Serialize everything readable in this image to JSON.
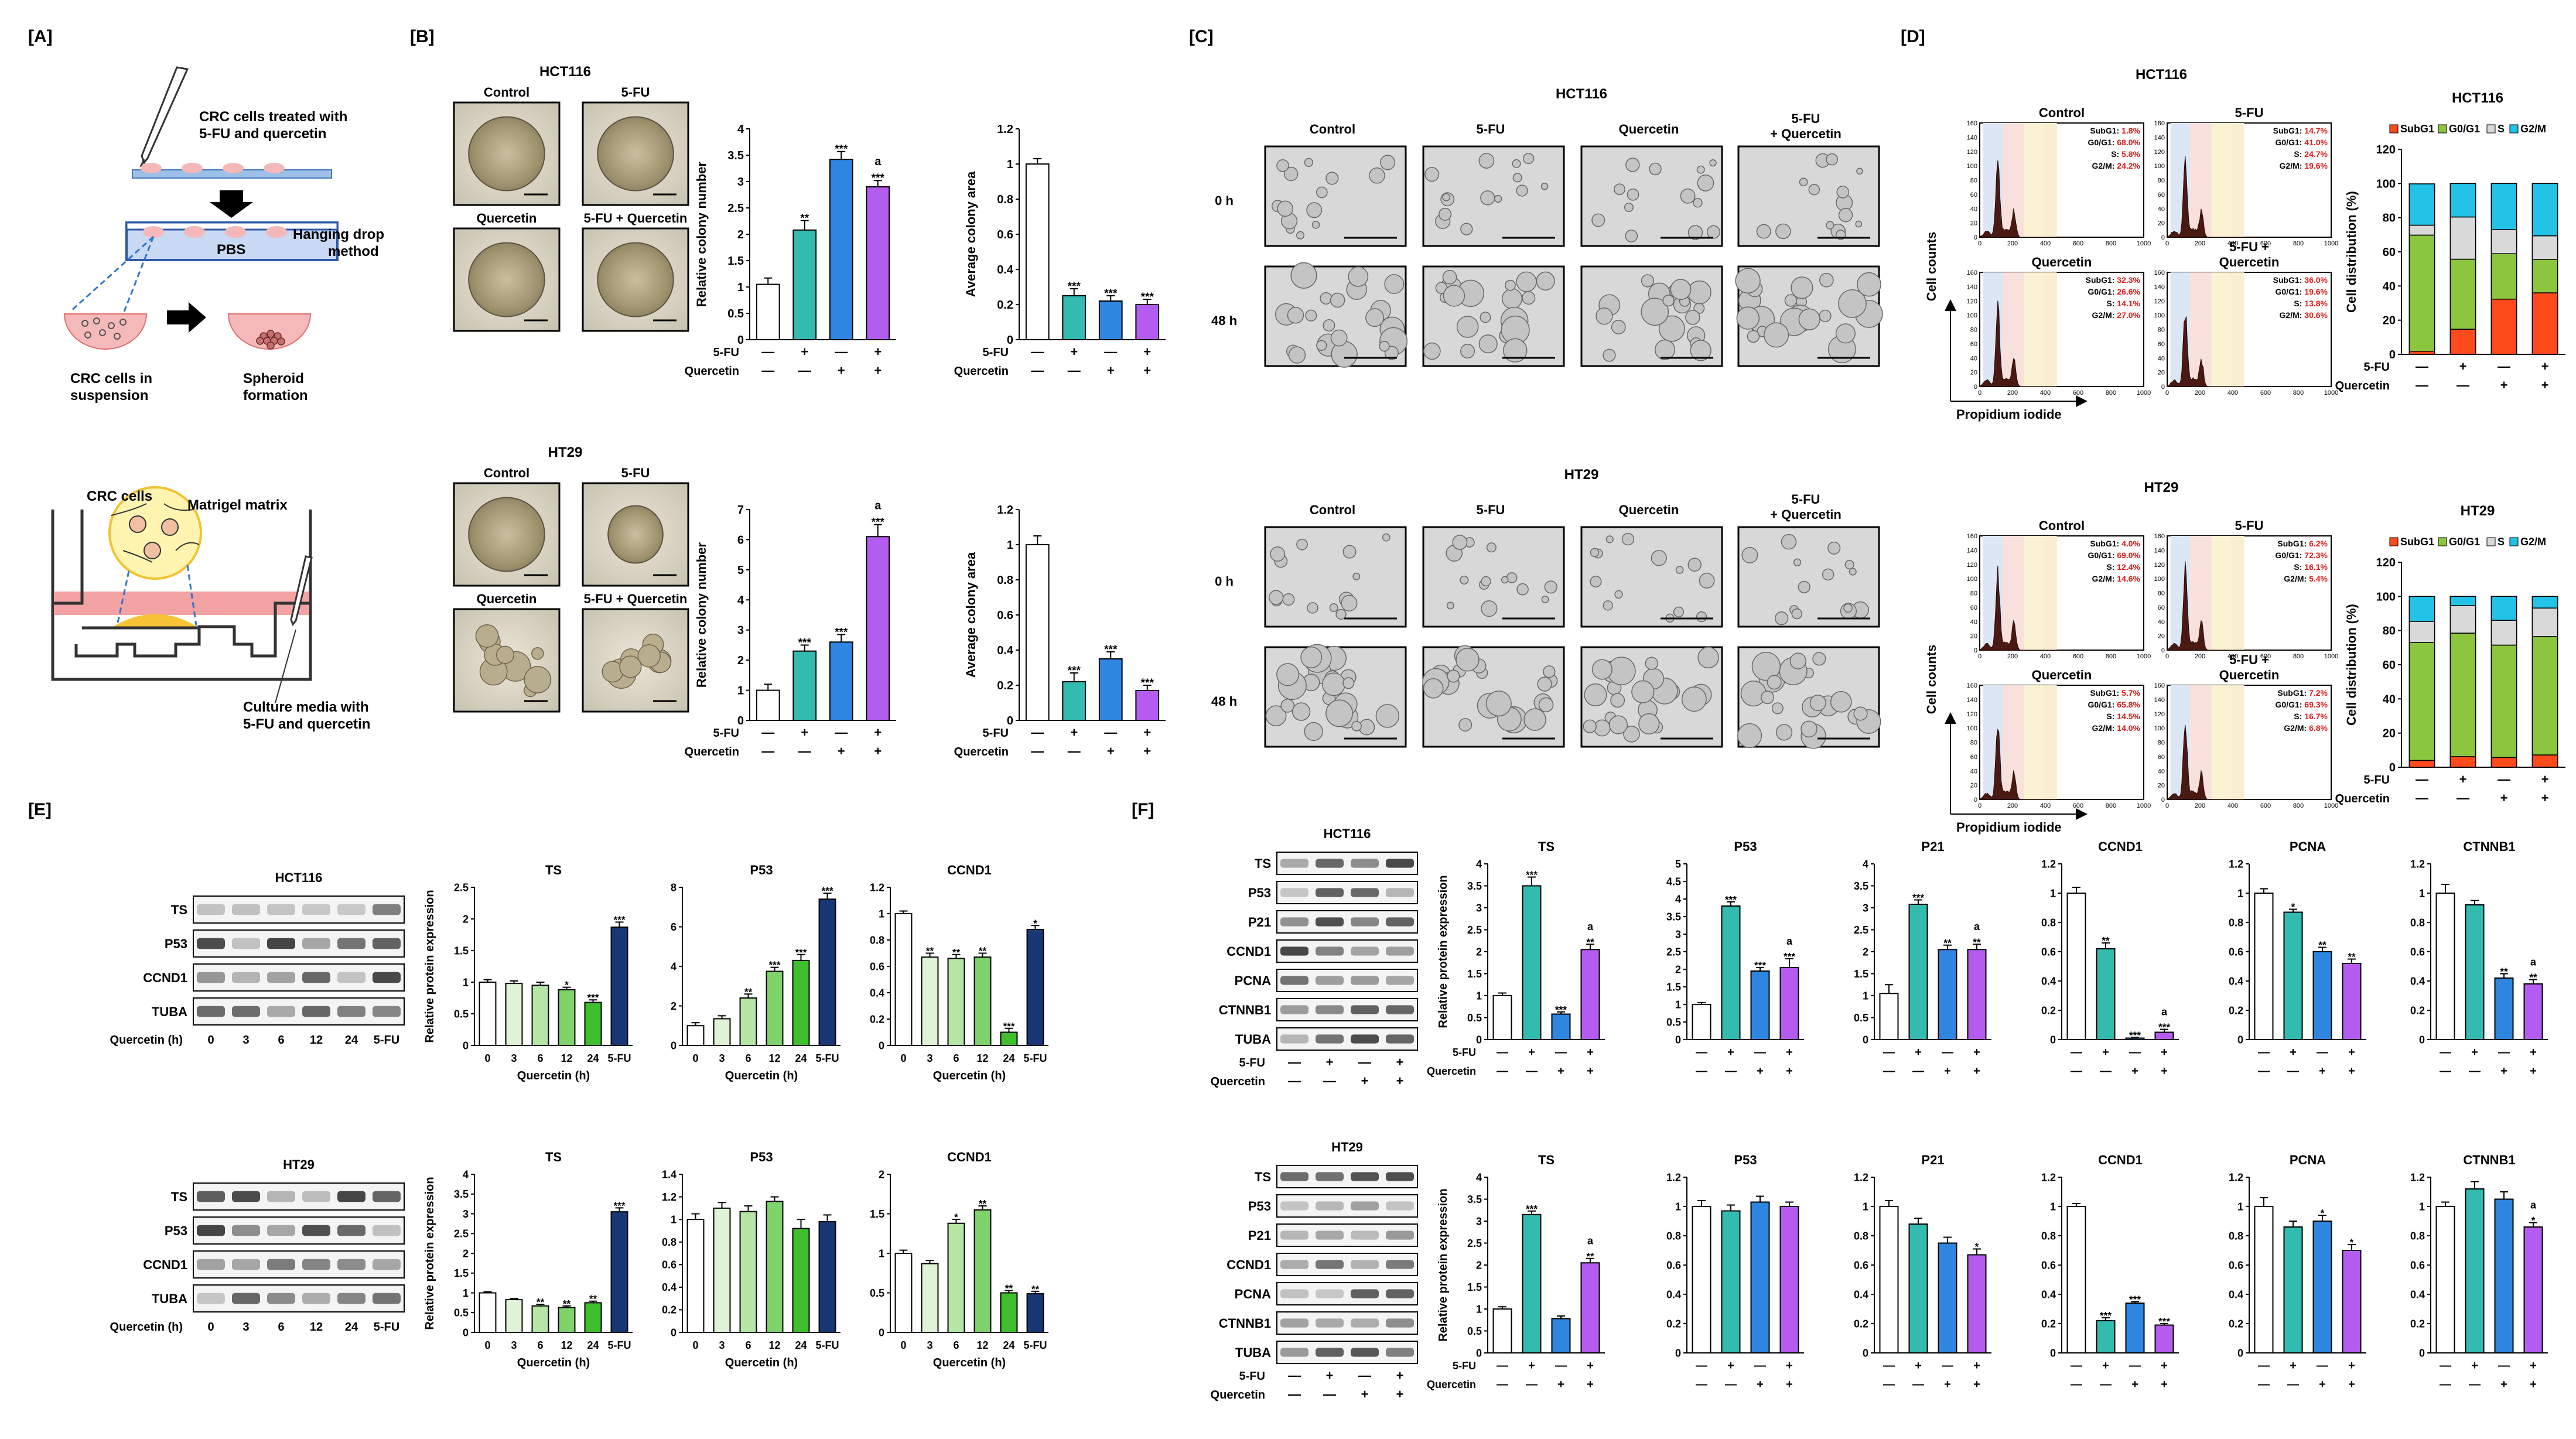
{
  "panel_labels": {
    "A": "[A]",
    "B": "[B]",
    "C": "[C]",
    "D": "[D]",
    "E": "[E]",
    "F": "[F]"
  },
  "panel_a": {
    "treat": [
      "CRC cells treated with",
      "5-FU and quercetin"
    ],
    "pbs": "PBS",
    "hanging": [
      "Hanging drop",
      "method"
    ],
    "suspension": [
      "CRC cells in",
      "suspension"
    ],
    "spheroid": [
      "Spheroid",
      "formation"
    ],
    "crc_cells": "CRC cells",
    "matrigel": "Matrigel matrix",
    "media": [
      "Culture media with",
      "5-FU and quercetin"
    ]
  },
  "cells": [
    "HCT116",
    "HT29"
  ],
  "conditions": [
    "Control",
    "5-FU",
    "Quercetin",
    "5-FU + Quercetin"
  ],
  "condition_c_last": [
    "5-FU",
    "+ Quercetin"
  ],
  "condition_d_last": [
    "5-FU +",
    "Quercetin"
  ],
  "timepoints": [
    "0 h",
    "48 h"
  ],
  "row_5fu": "5-FU",
  "row_quercetin": "Quercetin",
  "signs_5fu": [
    "—",
    "+",
    "—",
    "+"
  ],
  "signs_q": [
    "—",
    "—",
    "+",
    "+"
  ],
  "ylabel_colony": "Relative colony number",
  "ylabel_area": "Average colony area",
  "ylabel_rpe": "Relative protein expression",
  "ylabel_dist": "Cell distribution (%)",
  "xlabel_quercetin": "Quercetin (h)",
  "cell_counts": "Cell counts",
  "pi_label": "Propidium iodide",
  "cycle_legend": [
    "SubG1",
    "G0/G1",
    "S",
    "G2/M"
  ],
  "cycle_stats": {
    "HCT116": [
      [
        "SubG1: 1.8%",
        "G0/G1: 68.0%",
        "S: 5.8%",
        "G2/M: 24.2%"
      ],
      [
        "SubG1: 14.7%",
        "G0/G1: 41.0%",
        "S: 24.7%",
        "G2/M: 19.6%"
      ],
      [
        "SubG1: 32.3%",
        "G0/G1: 26.6%",
        "S: 14.1%",
        "G2/M: 27.0%"
      ],
      [
        "SubG1: 36.0%",
        "G0/G1: 19.6%",
        "S: 13.8%",
        "G2/M: 30.6%"
      ]
    ],
    "HT29": [
      [
        "SubG1: 4.0%",
        "G0/G1: 69.0%",
        "S: 12.4%",
        "G2/M: 14.6%"
      ],
      [
        "SubG1: 6.2%",
        "G0/G1: 72.3%",
        "S: 16.1%",
        "G2/M: 5.4%"
      ],
      [
        "SubG1: 5.7%",
        "G0/G1: 65.8%",
        "S: 14.5%",
        "G2/M: 14.0%"
      ],
      [
        "SubG1: 7.2%",
        "G0/G1: 69.3%",
        "S: 16.7%",
        "G2/M: 6.8%"
      ]
    ]
  },
  "flow_ticks": [
    "0",
    "200",
    "400",
    "600",
    "800",
    "1000"
  ],
  "flow_yticks": [
    "0",
    "20",
    "40",
    "60",
    "80",
    "100",
    "120",
    "140",
    "160"
  ],
  "blot_e_proteins": [
    "TS",
    "P53",
    "CCND1",
    "TUBA"
  ],
  "blot_f_proteins": [
    "TS",
    "P53",
    "P21",
    "CCND1",
    "PCNA",
    "CTNNB1",
    "TUBA"
  ],
  "time_labels": [
    "0",
    "3",
    "6",
    "12",
    "24",
    "5-FU"
  ],
  "quercetin_h_label": "Quercetin (h)",
  "chart_data": [
    {
      "id": "B_HCT116_number",
      "type": "bar",
      "title": "",
      "ylabel": "Relative colony number",
      "ylim": [
        0,
        4
      ],
      "yticks": [
        "0",
        "0.5",
        "1",
        "1.5",
        "2",
        "2.5",
        "3",
        "3.5",
        "4"
      ],
      "values": [
        1.05,
        2.08,
        3.42,
        2.9
      ],
      "errors": [
        0.12,
        0.18,
        0.15,
        0.12
      ],
      "sig": [
        "",
        "**",
        "***",
        "a\n***"
      ],
      "colors": [
        "#ffffff",
        "#33bbb0",
        "#2e86e0",
        "#b55cf0"
      ]
    },
    {
      "id": "B_HCT116_area",
      "type": "bar",
      "title": "",
      "ylabel": "Average colony area",
      "ylim": [
        0,
        1.2
      ],
      "yticks": [
        "0",
        "0.2",
        "0.4",
        "0.6",
        "0.8",
        "1",
        "1.2"
      ],
      "values": [
        1.0,
        0.25,
        0.22,
        0.2
      ],
      "errors": [
        0.03,
        0.04,
        0.03,
        0.03
      ],
      "sig": [
        "",
        "***",
        "***",
        "***"
      ],
      "colors": [
        "#ffffff",
        "#33bbb0",
        "#2e86e0",
        "#b55cf0"
      ]
    },
    {
      "id": "B_HT29_number",
      "type": "bar",
      "title": "",
      "ylabel": "Relative colony number",
      "ylim": [
        0,
        7
      ],
      "yticks": [
        "0",
        "1",
        "2",
        "3",
        "4",
        "5",
        "6",
        "7"
      ],
      "values": [
        1.0,
        2.3,
        2.6,
        6.1
      ],
      "errors": [
        0.2,
        0.2,
        0.25,
        0.4
      ],
      "sig": [
        "",
        "***",
        "***",
        "a\n***"
      ],
      "colors": [
        "#ffffff",
        "#33bbb0",
        "#2e86e0",
        "#b55cf0"
      ]
    },
    {
      "id": "B_HT29_area",
      "type": "bar",
      "title": "",
      "ylabel": "Average colony area",
      "ylim": [
        0,
        1.2
      ],
      "yticks": [
        "0",
        "0.2",
        "0.4",
        "0.6",
        "0.8",
        "1",
        "1.2"
      ],
      "values": [
        1.0,
        0.22,
        0.35,
        0.17
      ],
      "errors": [
        0.05,
        0.05,
        0.04,
        0.03
      ],
      "sig": [
        "",
        "***",
        "***",
        "***"
      ],
      "colors": [
        "#ffffff",
        "#33bbb0",
        "#2e86e0",
        "#b55cf0"
      ]
    },
    {
      "id": "D_HCT116_dist",
      "type": "stacked_bar",
      "ylabel": "Cell distribution (%)",
      "ylim": [
        0,
        120
      ],
      "yticks": [
        "0",
        "20",
        "40",
        "60",
        "80",
        "100",
        "120"
      ],
      "series": [
        {
          "name": "SubG1",
          "values": [
            1.8,
            14.7,
            32.3,
            36.0
          ],
          "color": "#ff4a1c"
        },
        {
          "name": "G0/G1",
          "values": [
            68.0,
            41.0,
            26.6,
            19.6
          ],
          "color": "#8cc63f"
        },
        {
          "name": "S",
          "values": [
            5.8,
            24.7,
            14.1,
            13.8
          ],
          "color": "#d9d9d9"
        },
        {
          "name": "G2/M",
          "values": [
            24.2,
            19.6,
            27.0,
            30.6
          ],
          "color": "#22c3e6"
        }
      ]
    },
    {
      "id": "D_HT29_dist",
      "type": "stacked_bar",
      "ylabel": "Cell distribution (%)",
      "ylim": [
        0,
        120
      ],
      "yticks": [
        "0",
        "20",
        "40",
        "60",
        "80",
        "100",
        "120"
      ],
      "series": [
        {
          "name": "SubG1",
          "values": [
            4.0,
            6.2,
            5.7,
            7.2
          ],
          "color": "#ff4a1c"
        },
        {
          "name": "G0/G1",
          "values": [
            69.0,
            72.3,
            65.8,
            69.3
          ],
          "color": "#8cc63f"
        },
        {
          "name": "S",
          "values": [
            12.4,
            16.1,
            14.5,
            16.7
          ],
          "color": "#d9d9d9"
        },
        {
          "name": "G2/M",
          "values": [
            14.6,
            5.4,
            14.0,
            6.8
          ],
          "color": "#22c3e6"
        }
      ]
    },
    {
      "id": "E_HCT116_TS",
      "type": "bar",
      "title": "TS",
      "ylim": [
        0,
        2.5
      ],
      "yticks": [
        "0",
        "0.5",
        "1",
        "1.5",
        "2",
        "2.5"
      ],
      "values": [
        1.0,
        0.98,
        0.95,
        0.88,
        0.68,
        1.87
      ],
      "errors": [
        0.04,
        0.04,
        0.05,
        0.04,
        0.04,
        0.08
      ],
      "sig": [
        "",
        "",
        "",
        "*",
        "***",
        "***"
      ],
      "colors": [
        "#ffffff",
        "#dff3d5",
        "#b5e6a5",
        "#7ed36a",
        "#3fbf2e",
        "#1a3775"
      ]
    },
    {
      "id": "E_HCT116_P53",
      "type": "bar",
      "title": "P53",
      "ylim": [
        0,
        8
      ],
      "yticks": [
        "0",
        "2",
        "4",
        "6",
        "8"
      ],
      "values": [
        1.0,
        1.35,
        2.4,
        3.75,
        4.3,
        7.4
      ],
      "errors": [
        0.15,
        0.15,
        0.2,
        0.2,
        0.3,
        0.3
      ],
      "sig": [
        "",
        "",
        "**",
        "***",
        "***",
        "***"
      ],
      "colors": [
        "#ffffff",
        "#dff3d5",
        "#b5e6a5",
        "#7ed36a",
        "#3fbf2e",
        "#1a3775"
      ]
    },
    {
      "id": "E_HCT116_CCND1",
      "type": "bar",
      "title": "CCND1",
      "ylim": [
        0,
        1.2
      ],
      "yticks": [
        "0",
        "0.2",
        "0.4",
        "0.6",
        "0.8",
        "1",
        "1.2"
      ],
      "values": [
        1.0,
        0.67,
        0.66,
        0.67,
        0.1,
        0.88
      ],
      "errors": [
        0.02,
        0.03,
        0.03,
        0.03,
        0.03,
        0.03
      ],
      "sig": [
        "",
        "**",
        "**",
        "**",
        "***",
        "*"
      ],
      "colors": [
        "#ffffff",
        "#dff3d5",
        "#b5e6a5",
        "#7ed36a",
        "#3fbf2e",
        "#1a3775"
      ]
    },
    {
      "id": "E_HT29_TS",
      "type": "bar",
      "title": "TS",
      "ylim": [
        0,
        4
      ],
      "yticks": [
        "0",
        "0.5",
        "1",
        "1.5",
        "2",
        "2.5",
        "3",
        "3.5",
        "4"
      ],
      "values": [
        1.0,
        0.83,
        0.67,
        0.63,
        0.75,
        3.05
      ],
      "errors": [
        0.03,
        0.03,
        0.04,
        0.04,
        0.04,
        0.1
      ],
      "sig": [
        "",
        "",
        "**",
        "**",
        "**",
        "***"
      ],
      "colors": [
        "#ffffff",
        "#dff3d5",
        "#b5e6a5",
        "#7ed36a",
        "#3fbf2e",
        "#1a3775"
      ]
    },
    {
      "id": "E_HT29_P53",
      "type": "bar",
      "title": "P53",
      "ylim": [
        0,
        1.4
      ],
      "yticks": [
        "0",
        "0.2",
        "0.4",
        "0.6",
        "0.8",
        "1",
        "1.2",
        "1.4"
      ],
      "values": [
        1.0,
        1.1,
        1.07,
        1.16,
        0.92,
        0.98
      ],
      "errors": [
        0.05,
        0.05,
        0.05,
        0.04,
        0.08,
        0.06
      ],
      "sig": [
        "",
        "",
        "",
        "",
        "",
        ""
      ],
      "colors": [
        "#ffffff",
        "#dff3d5",
        "#b5e6a5",
        "#7ed36a",
        "#3fbf2e",
        "#1a3775"
      ]
    },
    {
      "id": "E_HT29_CCND1",
      "type": "bar",
      "title": "CCND1",
      "ylim": [
        0,
        2
      ],
      "yticks": [
        "0",
        "0.5",
        "1",
        "1.5",
        "2"
      ],
      "values": [
        1.0,
        0.87,
        1.38,
        1.55,
        0.5,
        0.49
      ],
      "errors": [
        0.04,
        0.04,
        0.05,
        0.05,
        0.03,
        0.03
      ],
      "sig": [
        "",
        "",
        "*",
        "**",
        "**",
        "**"
      ],
      "colors": [
        "#ffffff",
        "#dff3d5",
        "#b5e6a5",
        "#7ed36a",
        "#3fbf2e",
        "#1a3775"
      ]
    },
    {
      "id": "F_HCT116_TS",
      "type": "bar",
      "title": "TS",
      "ylim": [
        0,
        4
      ],
      "yticks": [
        "0",
        "0.5",
        "1",
        "1.5",
        "2",
        "2.5",
        "3",
        "3.5",
        "4"
      ],
      "values": [
        1.0,
        3.5,
        0.58,
        2.05
      ],
      "errors": [
        0.06,
        0.2,
        0.05,
        0.12
      ],
      "sig": [
        "",
        "***",
        "***",
        "a\n**"
      ],
      "colors": [
        "#ffffff",
        "#33bbb0",
        "#2e86e0",
        "#b55cf0"
      ]
    },
    {
      "id": "F_HCT116_P53",
      "type": "bar",
      "title": "P53",
      "ylim": [
        0,
        5
      ],
      "yticks": [
        "0",
        "0.5",
        "1",
        "1.5",
        "2",
        "2.5",
        "3",
        "3.5",
        "4",
        "4.5",
        "5"
      ],
      "values": [
        1.0,
        3.8,
        1.95,
        2.05
      ],
      "errors": [
        0.05,
        0.12,
        0.1,
        0.25
      ],
      "sig": [
        "",
        "***",
        "***",
        "a\n***"
      ],
      "colors": [
        "#ffffff",
        "#33bbb0",
        "#2e86e0",
        "#b55cf0"
      ]
    },
    {
      "id": "F_HCT116_P21",
      "type": "bar",
      "title": "P21",
      "ylim": [
        0,
        4
      ],
      "yticks": [
        "0",
        "0.5",
        "1",
        "1.5",
        "2",
        "2.5",
        "3",
        "3.5",
        "4"
      ],
      "values": [
        1.05,
        3.08,
        2.05,
        2.05
      ],
      "errors": [
        0.2,
        0.1,
        0.1,
        0.12
      ],
      "sig": [
        "",
        "***",
        "**",
        "a\n**"
      ],
      "colors": [
        "#ffffff",
        "#33bbb0",
        "#2e86e0",
        "#b55cf0"
      ]
    },
    {
      "id": "F_HCT116_CCND1",
      "type": "bar",
      "title": "CCND1",
      "ylim": [
        0,
        1.2
      ],
      "yticks": [
        "0",
        "0.2",
        "0.4",
        "0.6",
        "0.8",
        "1",
        "1.2"
      ],
      "values": [
        1.0,
        0.62,
        0.01,
        0.05
      ],
      "errors": [
        0.04,
        0.04,
        0.005,
        0.02
      ],
      "sig": [
        "",
        "**",
        "***",
        "a\n***"
      ],
      "colors": [
        "#ffffff",
        "#33bbb0",
        "#2e86e0",
        "#b55cf0"
      ]
    },
    {
      "id": "F_HCT116_PCNA",
      "type": "bar",
      "title": "PCNA",
      "ylim": [
        0,
        1.2
      ],
      "yticks": [
        "0",
        "0.2",
        "0.4",
        "0.6",
        "0.8",
        "1",
        "1.2"
      ],
      "values": [
        1.0,
        0.87,
        0.6,
        0.52
      ],
      "errors": [
        0.03,
        0.02,
        0.03,
        0.03
      ],
      "sig": [
        "",
        "*",
        "**",
        "**"
      ],
      "colors": [
        "#ffffff",
        "#33bbb0",
        "#2e86e0",
        "#b55cf0"
      ]
    },
    {
      "id": "F_HCT116_CTNNB1",
      "type": "bar",
      "title": "CTNNB1",
      "ylim": [
        0,
        1.2
      ],
      "yticks": [
        "0",
        "0.2",
        "0.4",
        "0.6",
        "0.8",
        "1",
        "1.2"
      ],
      "values": [
        1.0,
        0.92,
        0.42,
        0.38
      ],
      "errors": [
        0.06,
        0.03,
        0.03,
        0.03
      ],
      "sig": [
        "",
        "",
        "**",
        "a\n**"
      ],
      "colors": [
        "#ffffff",
        "#33bbb0",
        "#2e86e0",
        "#b55cf0"
      ]
    },
    {
      "id": "F_HT29_TS",
      "type": "bar",
      "title": "TS",
      "ylim": [
        0,
        4
      ],
      "yticks": [
        "0",
        "0.5",
        "1",
        "1.5",
        "2",
        "2.5",
        "3",
        "3.5",
        "4"
      ],
      "values": [
        1.0,
        3.15,
        0.78,
        2.05
      ],
      "errors": [
        0.05,
        0.08,
        0.06,
        0.1
      ],
      "sig": [
        "",
        "***",
        "",
        "a\n**"
      ],
      "colors": [
        "#ffffff",
        "#33bbb0",
        "#2e86e0",
        "#b55cf0"
      ]
    },
    {
      "id": "F_HT29_P53",
      "type": "bar",
      "title": "P53",
      "ylim": [
        0,
        1.2
      ],
      "yticks": [
        "0",
        "0.2",
        "0.4",
        "0.6",
        "0.8",
        "1",
        "1.2"
      ],
      "values": [
        1.0,
        0.97,
        1.03,
        1.0
      ],
      "errors": [
        0.04,
        0.04,
        0.04,
        0.03
      ],
      "sig": [
        "",
        "",
        "",
        ""
      ],
      "colors": [
        "#ffffff",
        "#33bbb0",
        "#2e86e0",
        "#b55cf0"
      ]
    },
    {
      "id": "F_HT29_P21",
      "type": "bar",
      "title": "P21",
      "ylim": [
        0,
        1.2
      ],
      "yticks": [
        "0",
        "0.2",
        "0.4",
        "0.6",
        "0.8",
        "1",
        "1.2"
      ],
      "values": [
        1.0,
        0.88,
        0.75,
        0.67
      ],
      "errors": [
        0.04,
        0.04,
        0.04,
        0.04
      ],
      "sig": [
        "",
        "",
        "",
        "*"
      ],
      "colors": [
        "#ffffff",
        "#33bbb0",
        "#2e86e0",
        "#b55cf0"
      ]
    },
    {
      "id": "F_HT29_CCND1",
      "type": "bar",
      "title": "CCND1",
      "ylim": [
        0,
        1.2
      ],
      "yticks": [
        "0",
        "0.2",
        "0.4",
        "0.6",
        "0.8",
        "1",
        "1.2"
      ],
      "values": [
        1.0,
        0.22,
        0.34,
        0.19
      ],
      "errors": [
        0.02,
        0.02,
        0.01,
        0.01
      ],
      "sig": [
        "",
        "***",
        "***",
        "***"
      ],
      "colors": [
        "#ffffff",
        "#33bbb0",
        "#2e86e0",
        "#b55cf0"
      ]
    },
    {
      "id": "F_HT29_PCNA",
      "type": "bar",
      "title": "PCNA",
      "ylim": [
        0,
        1.2
      ],
      "yticks": [
        "0",
        "0.2",
        "0.4",
        "0.6",
        "0.8",
        "1",
        "1.2"
      ],
      "values": [
        1.0,
        0.86,
        0.9,
        0.7
      ],
      "errors": [
        0.06,
        0.04,
        0.04,
        0.04
      ],
      "sig": [
        "",
        "",
        "*",
        "*"
      ],
      "colors": [
        "#ffffff",
        "#33bbb0",
        "#2e86e0",
        "#b55cf0"
      ]
    },
    {
      "id": "F_HT29_CTNNB1",
      "type": "bar",
      "title": "CTNNB1",
      "ylim": [
        0,
        1.2
      ],
      "yticks": [
        "0",
        "0.2",
        "0.4",
        "0.6",
        "0.8",
        "1",
        "1.2"
      ],
      "values": [
        1.0,
        1.12,
        1.05,
        0.86
      ],
      "errors": [
        0.03,
        0.05,
        0.05,
        0.03
      ],
      "sig": [
        "",
        "",
        "",
        "a\n*"
      ],
      "colors": [
        "#ffffff",
        "#33bbb0",
        "#2e86e0",
        "#b55cf0"
      ]
    }
  ]
}
